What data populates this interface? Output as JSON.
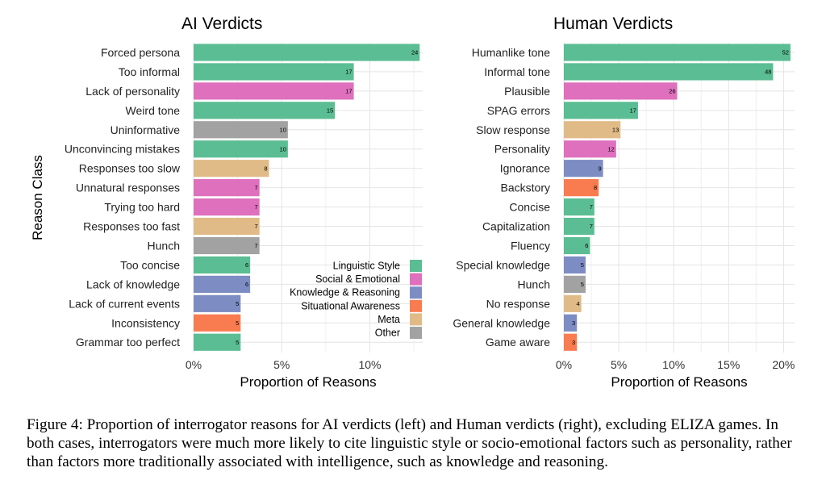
{
  "chart_data": [
    {
      "type": "bar",
      "orientation": "horizontal",
      "title": "AI Verdicts",
      "xlabel": "Proportion of Reasons",
      "ylabel": "Reason Class",
      "xlim": [
        0,
        0.13
      ],
      "xticks": [
        0,
        0.05,
        0.1
      ],
      "xtick_labels": [
        "0%",
        "5%",
        "10%"
      ],
      "grid": true,
      "categories": [
        "Forced persona",
        "Too informal",
        "Lack of personality",
        "Weird tone",
        "Uninformative",
        "Unconvincing mistakes",
        "Responses too slow",
        "Unnatural responses",
        "Trying too hard",
        "Responses too fast",
        "Hunch",
        "Too concise",
        "Lack of knowledge",
        "Lack of current events",
        "Inconsistency",
        "Grammar too perfect"
      ],
      "counts": [
        24,
        17,
        17,
        15,
        10,
        10,
        8,
        7,
        7,
        7,
        7,
        6,
        6,
        5,
        5,
        5
      ],
      "values": [
        0.1283,
        0.0909,
        0.0909,
        0.0802,
        0.0535,
        0.0535,
        0.0428,
        0.0374,
        0.0374,
        0.0374,
        0.0374,
        0.0321,
        0.0321,
        0.0267,
        0.0267,
        0.0267
      ],
      "classes": [
        "Linguistic Style",
        "Linguistic Style",
        "Social & Emotional",
        "Linguistic Style",
        "Other",
        "Linguistic Style",
        "Meta",
        "Social & Emotional",
        "Social & Emotional",
        "Meta",
        "Other",
        "Linguistic Style",
        "Knowledge & Reasoning",
        "Knowledge & Reasoning",
        "Situational Awareness",
        "Linguistic Style"
      ],
      "legend": {
        "placement": "bottom-right",
        "entries": [
          {
            "name": "Linguistic Style",
            "color": "#5bbd93"
          },
          {
            "name": "Social & Emotional",
            "color": "#de70bd"
          },
          {
            "name": "Knowledge & Reasoning",
            "color": "#7d8dc4"
          },
          {
            "name": "Situational Awareness",
            "color": "#f87c50"
          },
          {
            "name": "Meta",
            "color": "#e0bb87"
          },
          {
            "name": "Other",
            "color": "#a2a2a2"
          }
        ]
      }
    },
    {
      "type": "bar",
      "orientation": "horizontal",
      "title": "Human Verdicts",
      "xlabel": "Proportion of Reasons",
      "ylabel": "",
      "xlim": [
        0,
        0.21
      ],
      "xticks": [
        0,
        0.05,
        0.1,
        0.15,
        0.2
      ],
      "xtick_labels": [
        "0%",
        "5%",
        "10%",
        "15%",
        "20%"
      ],
      "grid": true,
      "categories": [
        "Humanlike tone",
        "Informal tone",
        "Plausible",
        "SPAG errors",
        "Slow response",
        "Personality",
        "Ignorance",
        "Backstory",
        "Concise",
        "Capitalization",
        "Fluency",
        "Special knowledge",
        "Hunch",
        "No response",
        "General knowledge",
        "Game aware"
      ],
      "counts": [
        52,
        48,
        26,
        17,
        13,
        12,
        9,
        8,
        7,
        7,
        6,
        5,
        5,
        4,
        3,
        3
      ],
      "values": [
        0.2063,
        0.1905,
        0.1032,
        0.0675,
        0.0516,
        0.0476,
        0.0357,
        0.0317,
        0.0278,
        0.0278,
        0.0238,
        0.0198,
        0.0198,
        0.0159,
        0.0119,
        0.0119
      ],
      "classes": [
        "Linguistic Style",
        "Linguistic Style",
        "Social & Emotional",
        "Linguistic Style",
        "Meta",
        "Social & Emotional",
        "Knowledge & Reasoning",
        "Situational Awareness",
        "Linguistic Style",
        "Linguistic Style",
        "Linguistic Style",
        "Knowledge & Reasoning",
        "Other",
        "Meta",
        "Knowledge & Reasoning",
        "Situational Awareness"
      ]
    }
  ],
  "caption": "Figure 4:  Proportion of interrogator reasons for AI verdicts (left) and Human verdicts (right), excluding ELIZA games. In both cases, interrogators were much more likely to cite linguistic style or socio-emotional factors such as personality, rather than factors more traditionally associated with intelligence, such as knowledge and reasoning."
}
